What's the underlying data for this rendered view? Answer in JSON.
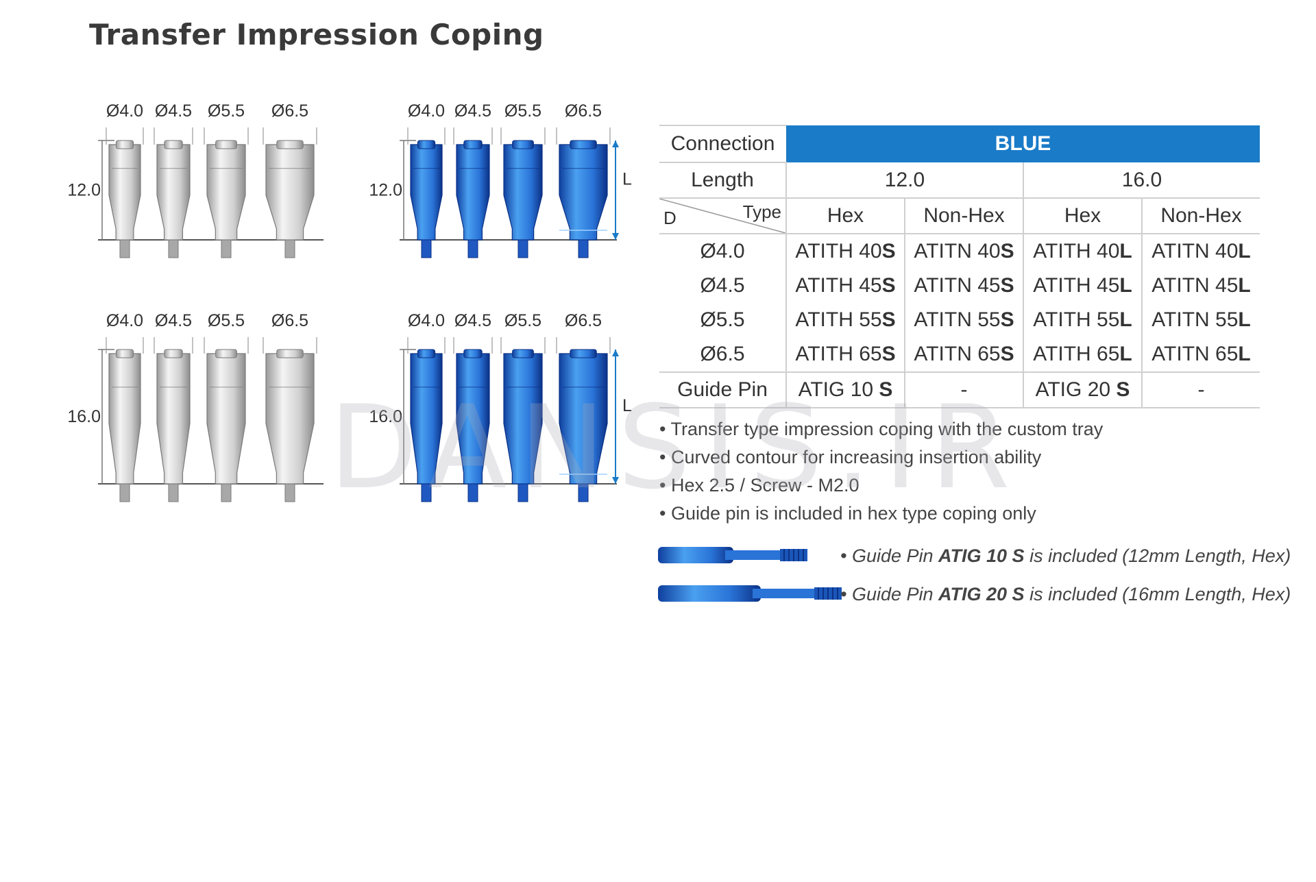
{
  "title": "Transfer Impression Coping",
  "diameters": [
    "Ø4.0",
    "Ø4.5",
    "Ø5.5",
    "Ø6.5"
  ],
  "lengths": [
    "12.0",
    "16.0"
  ],
  "length_marker": "L",
  "colors": {
    "accent": "#1a7bc8",
    "coping_blue": "#2a74d8",
    "coping_silver": "#d9d9d9"
  },
  "table": {
    "connection_label": "Connection",
    "connection_value": "BLUE",
    "length_label": "Length",
    "length_values": [
      "12.0",
      "16.0"
    ],
    "d_label": "D",
    "type_label": "Type",
    "types": [
      "Hex",
      "Non-Hex",
      "Hex",
      "Non-Hex"
    ],
    "rows": [
      {
        "d": "Ø4.0",
        "cells": [
          [
            "ATITH 40",
            "S"
          ],
          [
            "ATITN 40",
            "S"
          ],
          [
            "ATITH 40",
            "L"
          ],
          [
            "ATITN 40",
            "L"
          ]
        ]
      },
      {
        "d": "Ø4.5",
        "cells": [
          [
            "ATITH 45",
            "S"
          ],
          [
            "ATITN 45",
            "S"
          ],
          [
            "ATITH 45",
            "L"
          ],
          [
            "ATITN 45",
            "L"
          ]
        ]
      },
      {
        "d": "Ø5.5",
        "cells": [
          [
            "ATITH 55",
            "S"
          ],
          [
            "ATITN 55",
            "S"
          ],
          [
            "ATITH 55",
            "L"
          ],
          [
            "ATITN 55",
            "L"
          ]
        ]
      },
      {
        "d": "Ø6.5",
        "cells": [
          [
            "ATITH 65",
            "S"
          ],
          [
            "ATITN 65",
            "S"
          ],
          [
            "ATITH 65",
            "L"
          ],
          [
            "ATITN 65",
            "L"
          ]
        ]
      }
    ],
    "guide_pin_label": "Guide Pin",
    "guide_pin_cells": [
      [
        "ATIG 10 ",
        "S"
      ],
      [
        "-",
        ""
      ],
      [
        "ATIG 20 ",
        "S"
      ],
      [
        "-",
        ""
      ]
    ]
  },
  "bullets": [
    "Transfer type impression coping with the custom tray",
    "Curved contour for increasing insertion ability",
    "Hex 2.5 / Screw -  M2.0",
    "Guide pin is included in hex type coping only"
  ],
  "pin_notes": [
    {
      "prefix": "• Guide Pin ",
      "code": "ATIG 10 S",
      "suffix": " is included (12mm Length, Hex)"
    },
    {
      "prefix": "• Guide Pin ",
      "code": "ATIG 20 S",
      "suffix": " is included (16mm Length, Hex)"
    }
  ],
  "watermark": "DANSIS.IR"
}
